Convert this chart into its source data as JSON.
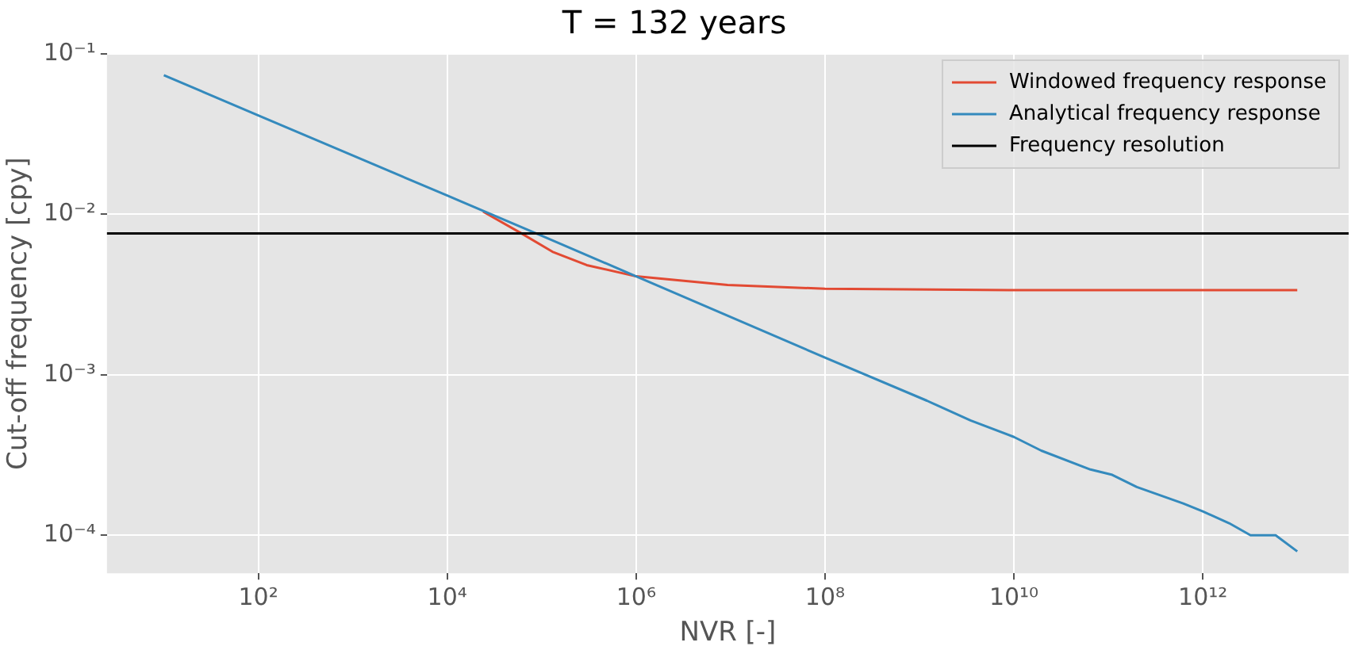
{
  "chart_data": {
    "type": "line",
    "title": "T = 132 years",
    "xlabel": "NVR [-]",
    "ylabel": "Cut-off frequency [cpy]",
    "log": "xy",
    "grid": true,
    "legend": "top right",
    "marker": "none",
    "line_style": "solid",
    "xlim": [
      2.5,
      35000000000000
    ],
    "ylim": [
      5.8e-05,
      0.1
    ],
    "xticks": [
      {
        "value": 100,
        "label": "10²"
      },
      {
        "value": 10000,
        "label": "10⁴"
      },
      {
        "value": 1000000,
        "label": "10⁶"
      },
      {
        "value": 100000000,
        "label": "10⁸"
      },
      {
        "value": 10000000000,
        "label": "10¹⁰"
      },
      {
        "value": 1000000000000,
        "label": "10¹²"
      }
    ],
    "yticks": [
      {
        "value": 0.0001,
        "label": "10⁻⁴"
      },
      {
        "value": 0.001,
        "label": "10⁻³"
      },
      {
        "value": 0.01,
        "label": "10⁻²"
      },
      {
        "value": 0.1,
        "label": "10⁻¹"
      }
    ],
    "series": [
      {
        "name": "Windowed frequency response",
        "color": "#e24a33",
        "x": [
          24000,
          60000,
          130000,
          300000,
          1000000,
          9300000,
          100000000,
          10000000000,
          1000000000000,
          10000000000000
        ],
        "values": [
          0.0104,
          0.00766,
          0.00585,
          0.00483,
          0.00411,
          0.00363,
          0.00344,
          0.00337,
          0.00337,
          0.00337
        ]
      },
      {
        "name": "Analytical frequency response",
        "color": "#348abd",
        "x": [
          10,
          100,
          1000,
          10000,
          100000,
          1000000,
          100000000,
          1200000000,
          3470000000,
          10000000000,
          19500000000,
          64600000000,
          110000000000,
          200000000000,
          620000000000,
          1000000000000,
          1900000000000,
          3200000000000,
          5900000000000,
          10000000000000
        ],
        "values": [
          0.0736,
          0.0414,
          0.0233,
          0.0131,
          0.00736,
          0.00411,
          0.00128,
          0.00069,
          0.00052,
          0.00041,
          0.000337,
          0.000257,
          0.000238,
          0.0002,
          0.000158,
          0.000141,
          0.000119,
          0.0001,
          0.0001,
          7.94e-05
        ]
      }
    ],
    "ref_lines": [
      {
        "axis": "y",
        "value": 0.0076,
        "label": "Frequency resolution",
        "color": "#000000",
        "line_style": "solid"
      }
    ]
  }
}
